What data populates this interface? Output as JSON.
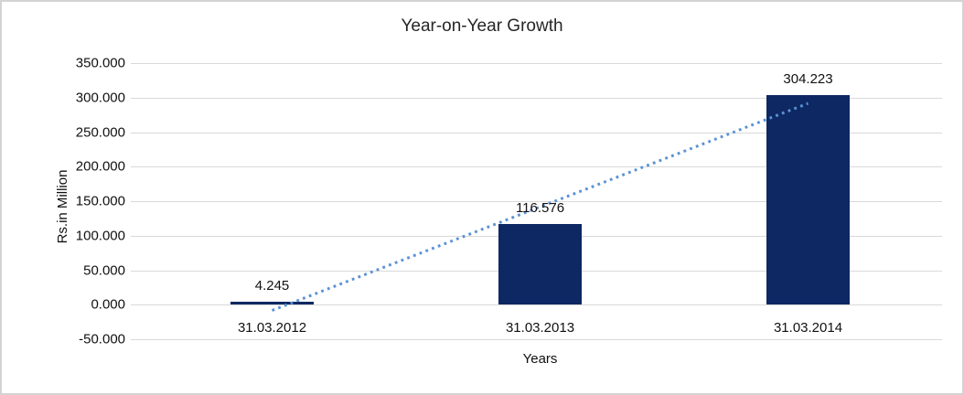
{
  "chart": {
    "title": "Year-on-Year Growth",
    "y_axis_title": "Rs.in Million",
    "x_axis_title": "Years"
  },
  "chart_data": {
    "type": "bar",
    "title": "Year-on-Year Growth",
    "categories": [
      "31.03.2012",
      "31.03.2013",
      "31.03.2014"
    ],
    "values": [
      4.245,
      116.576,
      304.223
    ],
    "data_labels": [
      "4.245",
      "116.576",
      "304.223"
    ],
    "xlabel": "Years",
    "ylabel": "Rs.in Million",
    "ylim": [
      -50,
      350
    ],
    "ytick_step": 50,
    "ytick_labels": [
      "350.000",
      "300.000",
      "250.000",
      "200.000",
      "150.000",
      "100.000",
      "50.000",
      "0.000",
      "-50.000"
    ],
    "grid": true,
    "legend": "none",
    "trendline": {
      "type": "linear",
      "style": "dotted"
    },
    "colors": {
      "bar": "#0d2862",
      "trendline": "#5b92d3",
      "gridline": "#d9d9d9",
      "frame_border": "#d3d3d3",
      "text": "#1a1a1a"
    }
  }
}
